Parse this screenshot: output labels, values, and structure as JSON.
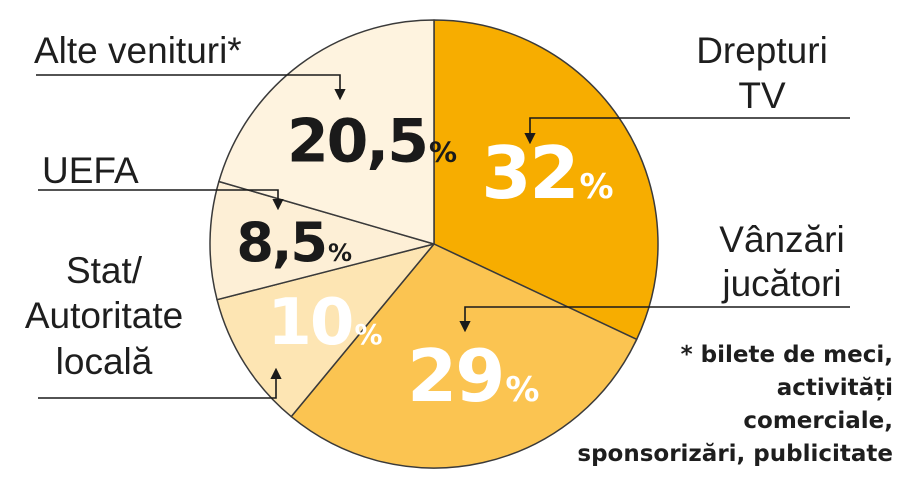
{
  "chart_data": {
    "type": "pie",
    "unit": "%",
    "slices": [
      {
        "label": "Drepturi TV",
        "value": 32,
        "display": "32",
        "color": "#f7ad00",
        "text_color": "#ffffff"
      },
      {
        "label": "Vânzări jucători",
        "value": 29,
        "display": "29",
        "color": "#fbc451",
        "text_color": "#ffffff"
      },
      {
        "label": "Stat/ Autoritate locală",
        "value": 10,
        "display": "10",
        "color": "#fde5b3",
        "text_color": "#ffffff"
      },
      {
        "label": "UEFA",
        "value": 8.5,
        "display": "8,5",
        "color": "#fdefd6",
        "text_color": "#1a1a1a"
      },
      {
        "label": "Alte venituri*",
        "value": 20.5,
        "display": "20,5",
        "color": "#fef3df",
        "text_color": "#1a1a1a"
      }
    ],
    "labels": {
      "drepturi": [
        "Drepturi",
        "TV"
      ],
      "vanzari": [
        "Vânzări",
        "jucători"
      ],
      "stat": [
        "Stat/",
        "Autoritate",
        "locală"
      ],
      "uefa": [
        "UEFA"
      ],
      "alte": [
        "Alte venituri*"
      ]
    },
    "footnote": [
      "* bilete de meci,",
      "activități",
      "comerciale,",
      "sponsorizări, publicitate"
    ]
  }
}
